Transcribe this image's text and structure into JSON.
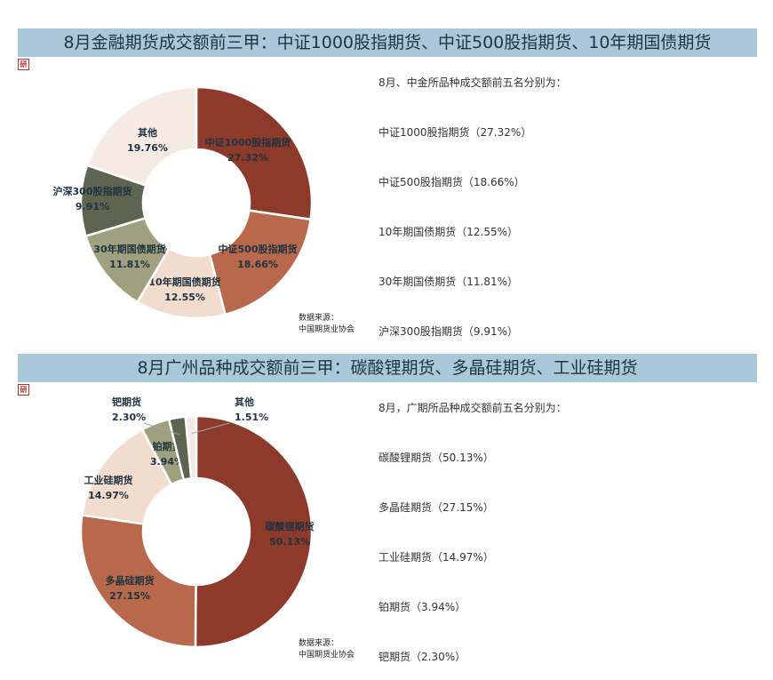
{
  "section1": {
    "banner": "8月金融期货成交额前三甲：中证1000股指期货、中证500股指期货、10年期国债期货",
    "intro": "8月、中金所品种成交额前五名分别为：",
    "list": [
      "中证1000股指期货（27.32%）",
      "中证500股指期货（18.66%）",
      "10年期国债期货（12.55%）",
      "30年期国债期货（11.81%）",
      "沪深300股指期货（9.91%）"
    ],
    "source_line1": "数据来源：",
    "source_line2": "中国期货业协会"
  },
  "section2": {
    "banner": "8月广州品种成交额前三甲：碳酸锂期货、多晶硅期货、工业硅期货",
    "intro": "8月，广期所品种成交额前五名分别为：",
    "list": [
      "碳酸锂期货（50.13%）",
      "多晶硅期货（27.15%）",
      "工业硅期货（14.97%）",
      "铂期货（3.94%）",
      "钯期货（2.30%）"
    ],
    "source_line1": "数据来源：",
    "source_line2": "中国期货业协会"
  },
  "logo_text": "研",
  "chart_data": [
    {
      "type": "pie",
      "donut": true,
      "categories": [
        "中证1000股指期货",
        "中证500股指期货",
        "10年期国债期货",
        "30年期国债期货",
        "沪深300股指期货",
        "其他"
      ],
      "values": [
        27.32,
        18.66,
        12.55,
        11.81,
        9.91,
        19.76
      ],
      "labels": [
        "27.32%",
        "18.66%",
        "12.55%",
        "11.81%",
        "9.91%",
        "19.76%"
      ],
      "colors": [
        "#8e3a2a",
        "#b8694b",
        "#f2dccd",
        "#a0a07e",
        "#5d6450",
        "#f5ebe4"
      ]
    },
    {
      "type": "pie",
      "donut": true,
      "categories": [
        "碳酸锂期货",
        "多晶硅期货",
        "工业硅期货",
        "铂期货",
        "钯期货",
        "其他"
      ],
      "values": [
        50.13,
        27.15,
        14.97,
        3.94,
        2.3,
        1.51
      ],
      "labels": [
        "50.13%",
        "27.15%",
        "14.97%",
        "3.94%",
        "2.30%",
        "1.51%"
      ],
      "colors": [
        "#8e3a2a",
        "#b8694b",
        "#f2dccd",
        "#a0a07e",
        "#5d6450",
        "#f5ebe4"
      ]
    }
  ]
}
